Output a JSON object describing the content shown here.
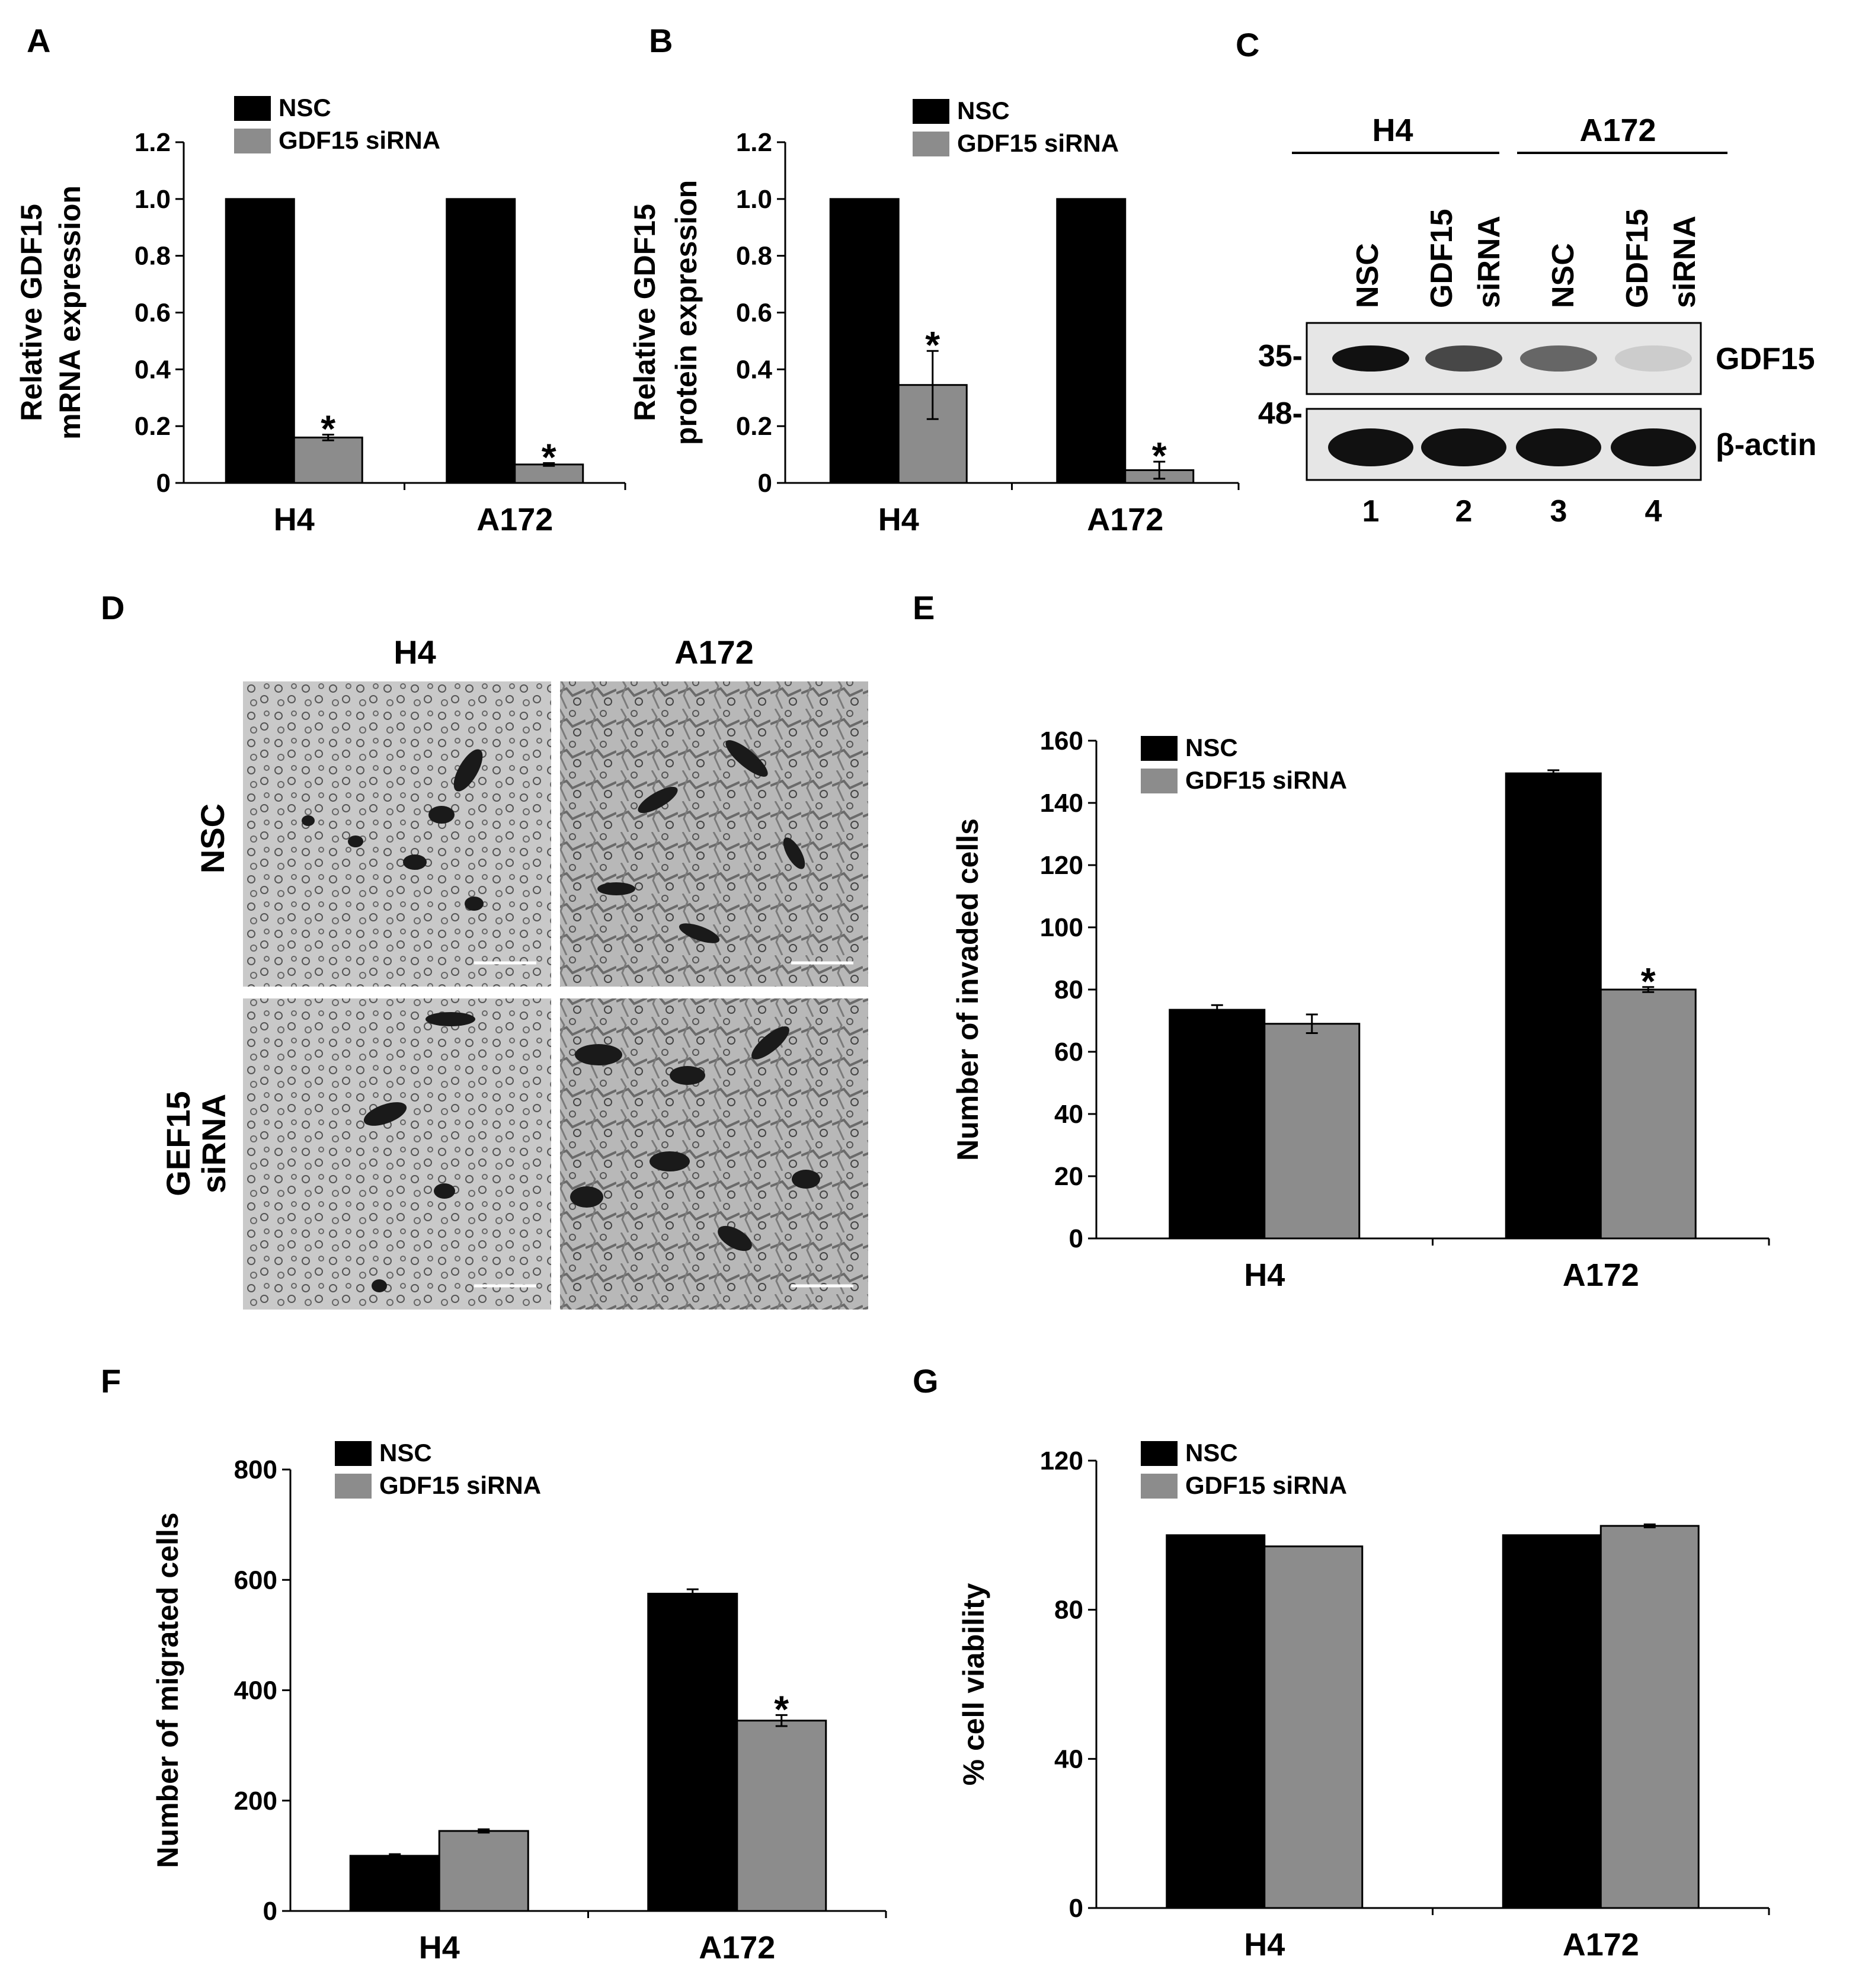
{
  "panels": {
    "A": "A",
    "B": "B",
    "C": "C",
    "D": "D",
    "E": "E",
    "F": "F",
    "G": "G"
  },
  "colors": {
    "nsc": "#000000",
    "sirna": "#8c8c8c"
  },
  "chart_data": [
    {
      "panel": "A",
      "type": "bar",
      "categories": [
        "H4",
        "A172"
      ],
      "series": [
        {
          "name": "NSC",
          "values": [
            1.0,
            1.0
          ],
          "errors": [
            0,
            0
          ]
        },
        {
          "name": "GDF15 siRNA",
          "values": [
            0.16,
            0.065
          ],
          "errors": [
            0.01,
            0.005
          ]
        }
      ],
      "ylabel": [
        "Relative GDF15",
        "mRNA expression"
      ],
      "ylim": [
        0,
        1.2
      ],
      "yticks": [
        "0",
        "0.2",
        "0.4",
        "0.6",
        "0.8",
        "1.0",
        "1.2"
      ],
      "significance": [
        "*",
        "*"
      ],
      "legend": "top-left"
    },
    {
      "panel": "B",
      "type": "bar",
      "categories": [
        "H4",
        "A172"
      ],
      "series": [
        {
          "name": "NSC",
          "values": [
            1.0,
            1.0
          ],
          "errors": [
            0,
            0
          ]
        },
        {
          "name": "GDF15 siRNA",
          "values": [
            0.345,
            0.045
          ],
          "errors": [
            0.12,
            0.03
          ]
        }
      ],
      "ylabel": [
        "Relative GDF15",
        "protein expression"
      ],
      "ylim": [
        0,
        1.2
      ],
      "yticks": [
        "0",
        "0.2",
        "0.4",
        "0.6",
        "0.8",
        "1.0",
        "1.2"
      ],
      "significance": [
        "*",
        "*"
      ],
      "legend": "top-left"
    },
    {
      "panel": "E",
      "type": "bar",
      "categories": [
        "H4",
        "A172"
      ],
      "series": [
        {
          "name": "NSC",
          "values": [
            73.5,
            149.5
          ],
          "errors": [
            1.5,
            1.0
          ]
        },
        {
          "name": "GDF15 siRNA",
          "values": [
            69,
            80
          ],
          "errors": [
            3,
            0.8
          ]
        }
      ],
      "ylabel": [
        "Number of invaded cells"
      ],
      "ylim": [
        0,
        160
      ],
      "yticks": [
        "0",
        "20",
        "40",
        "60",
        "80",
        "100",
        "120",
        "140",
        "160"
      ],
      "significance": [
        "",
        "*"
      ],
      "legend": "top-left"
    },
    {
      "panel": "F",
      "type": "bar",
      "categories": [
        "H4",
        "A172"
      ],
      "series": [
        {
          "name": "NSC",
          "values": [
            100,
            575
          ],
          "errors": [
            3,
            8
          ]
        },
        {
          "name": "GDF15 siRNA",
          "values": [
            145,
            345
          ],
          "errors": [
            3,
            10
          ]
        }
      ],
      "ylabel": [
        "Number of migrated cells"
      ],
      "ylim": [
        0,
        800
      ],
      "yticks": [
        "0",
        "200",
        "400",
        "600",
        "800"
      ],
      "significance": [
        "",
        "*"
      ],
      "legend": "top-left"
    },
    {
      "panel": "G",
      "type": "bar",
      "categories": [
        "H4",
        "A172"
      ],
      "series": [
        {
          "name": "NSC",
          "values": [
            100,
            100
          ],
          "errors": [
            0,
            0
          ]
        },
        {
          "name": "GDF15 siRNA",
          "values": [
            97,
            102.5
          ],
          "errors": [
            0,
            0.4
          ]
        }
      ],
      "ylabel": [
        "% cell viability"
      ],
      "ylim": [
        0,
        120
      ],
      "yticks": [
        "0",
        "40",
        "80",
        "120"
      ],
      "significance": [
        "",
        ""
      ],
      "legend": "top-left"
    }
  ],
  "blot": {
    "groups": [
      "H4",
      "A172"
    ],
    "lanes": [
      [
        "NSC"
      ],
      [
        "GDF15",
        "siRNA"
      ],
      [
        "NSC"
      ],
      [
        "GDF15",
        "siRNA"
      ]
    ],
    "lane_numbers": [
      "1",
      "2",
      "3",
      "4"
    ],
    "markers": [
      "35-",
      "48-"
    ],
    "bands": [
      "GDF15",
      "β-actin"
    ],
    "gdf15_intensity": [
      1.0,
      0.75,
      0.6,
      0.12
    ],
    "actin_intensity": [
      1.0,
      1.0,
      1.0,
      1.0
    ]
  },
  "micrographs": {
    "columns": [
      "H4",
      "A172"
    ],
    "rows": [
      [
        "NSC"
      ],
      [
        "GEF15",
        "siRNA"
      ]
    ]
  }
}
